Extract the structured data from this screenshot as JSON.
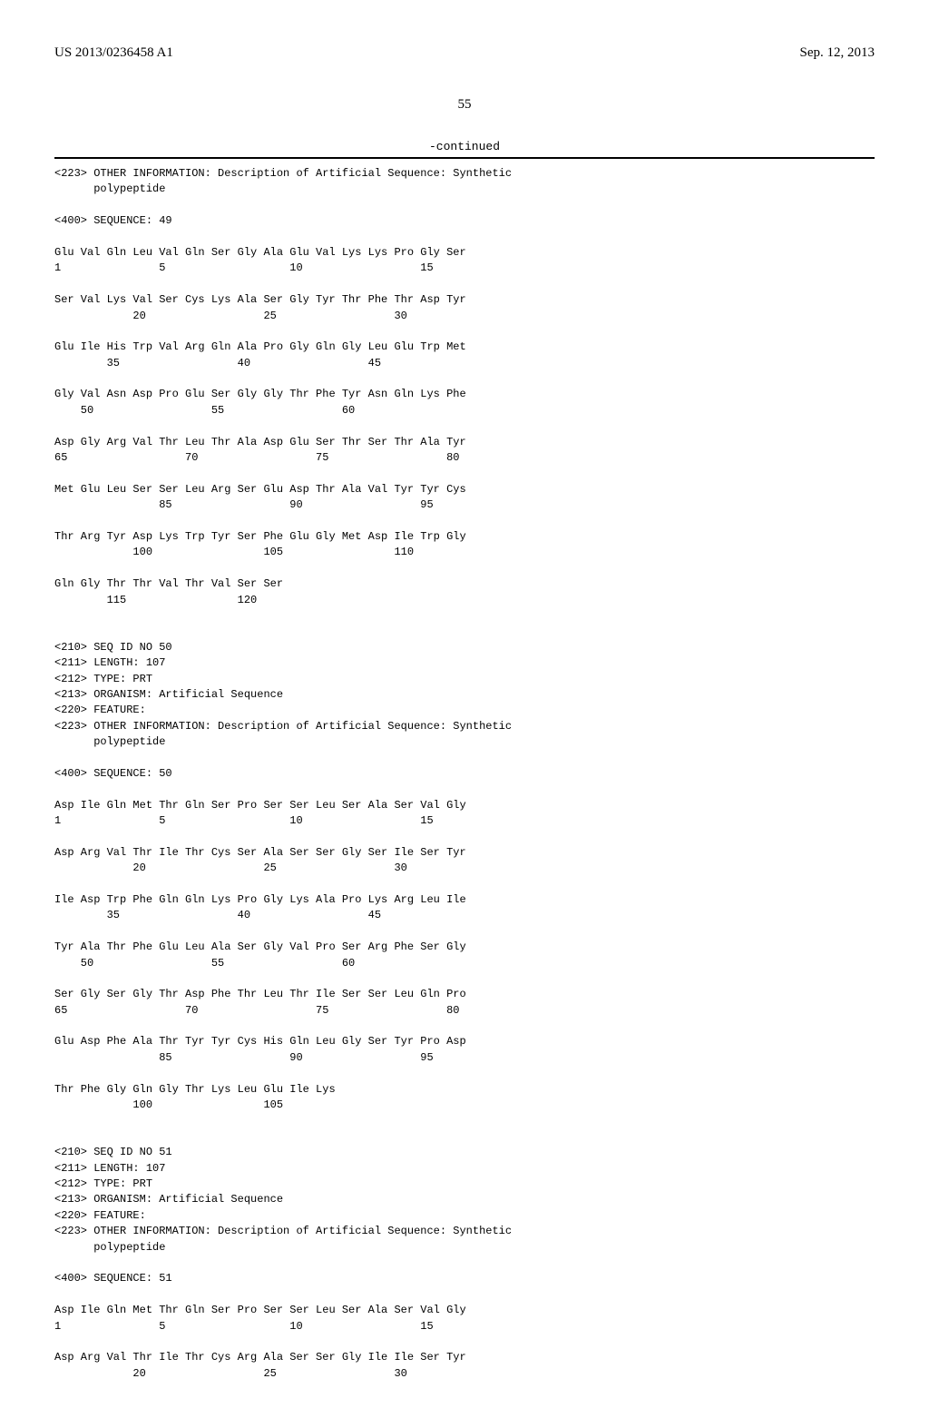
{
  "header": {
    "left": "US 2013/0236458 A1",
    "right": "Sep. 12, 2013"
  },
  "page_number": "55",
  "continued_label": "-continued",
  "seq_text": "<223> OTHER INFORMATION: Description of Artificial Sequence: Synthetic\n      polypeptide\n\n<400> SEQUENCE: 49\n\nGlu Val Gln Leu Val Gln Ser Gly Ala Glu Val Lys Lys Pro Gly Ser\n1               5                   10                  15\n\nSer Val Lys Val Ser Cys Lys Ala Ser Gly Tyr Thr Phe Thr Asp Tyr\n            20                  25                  30\n\nGlu Ile His Trp Val Arg Gln Ala Pro Gly Gln Gly Leu Glu Trp Met\n        35                  40                  45\n\nGly Val Asn Asp Pro Glu Ser Gly Gly Thr Phe Tyr Asn Gln Lys Phe\n    50                  55                  60\n\nAsp Gly Arg Val Thr Leu Thr Ala Asp Glu Ser Thr Ser Thr Ala Tyr\n65                  70                  75                  80\n\nMet Glu Leu Ser Ser Leu Arg Ser Glu Asp Thr Ala Val Tyr Tyr Cys\n                85                  90                  95\n\nThr Arg Tyr Asp Lys Trp Tyr Ser Phe Glu Gly Met Asp Ile Trp Gly\n            100                 105                 110\n\nGln Gly Thr Thr Val Thr Val Ser Ser\n        115                 120\n\n\n<210> SEQ ID NO 50\n<211> LENGTH: 107\n<212> TYPE: PRT\n<213> ORGANISM: Artificial Sequence\n<220> FEATURE:\n<223> OTHER INFORMATION: Description of Artificial Sequence: Synthetic\n      polypeptide\n\n<400> SEQUENCE: 50\n\nAsp Ile Gln Met Thr Gln Ser Pro Ser Ser Leu Ser Ala Ser Val Gly\n1               5                   10                  15\n\nAsp Arg Val Thr Ile Thr Cys Ser Ala Ser Ser Gly Ser Ile Ser Tyr\n            20                  25                  30\n\nIle Asp Trp Phe Gln Gln Lys Pro Gly Lys Ala Pro Lys Arg Leu Ile\n        35                  40                  45\n\nTyr Ala Thr Phe Glu Leu Ala Ser Gly Val Pro Ser Arg Phe Ser Gly\n    50                  55                  60\n\nSer Gly Ser Gly Thr Asp Phe Thr Leu Thr Ile Ser Ser Leu Gln Pro\n65                  70                  75                  80\n\nGlu Asp Phe Ala Thr Tyr Tyr Cys His Gln Leu Gly Ser Tyr Pro Asp\n                85                  90                  95\n\nThr Phe Gly Gln Gly Thr Lys Leu Glu Ile Lys\n            100                 105\n\n\n<210> SEQ ID NO 51\n<211> LENGTH: 107\n<212> TYPE: PRT\n<213> ORGANISM: Artificial Sequence\n<220> FEATURE:\n<223> OTHER INFORMATION: Description of Artificial Sequence: Synthetic\n      polypeptide\n\n<400> SEQUENCE: 51\n\nAsp Ile Gln Met Thr Gln Ser Pro Ser Ser Leu Ser Ala Ser Val Gly\n1               5                   10                  15\n\nAsp Arg Val Thr Ile Thr Cys Arg Ala Ser Ser Gly Ile Ile Ser Tyr\n            20                  25                  30"
}
